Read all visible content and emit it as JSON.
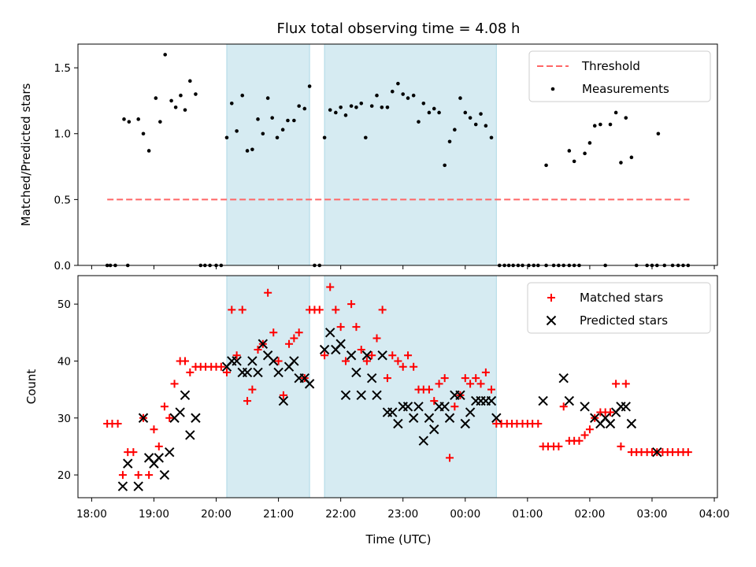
{
  "chart_data": {
    "type": "scatter",
    "title": "Flux total observing time = 4.08 h",
    "xlabel": "Time (UTC)",
    "x_unit": "hours since 18:00 UTC",
    "xlim": [
      -0.22,
      10.05
    ],
    "x_ticks": [
      0,
      1,
      2,
      3,
      4,
      5,
      6,
      7,
      8,
      9,
      10
    ],
    "x_tick_labels": [
      "18:00",
      "19:00",
      "20:00",
      "21:00",
      "22:00",
      "23:00",
      "00:00",
      "01:00",
      "02:00",
      "03:00",
      "04:00"
    ],
    "observing_windows": [
      [
        2.17,
        3.5
      ],
      [
        3.74,
        6.5
      ]
    ],
    "window_color": "#add8e6",
    "panels": [
      {
        "ylabel": "Matched/Predicted stars",
        "ylim": [
          0,
          1.68
        ],
        "y_ticks": [
          0,
          0.5,
          1.0,
          1.5
        ],
        "y_tick_labels": [
          "0.0",
          "0.5",
          "1.0",
          "1.5"
        ],
        "legend": [
          {
            "label": "Threshold",
            "style": "dashed-line",
            "color": "#ff6666"
          },
          {
            "label": "Measurements",
            "style": "dot",
            "color": "#000000"
          }
        ],
        "threshold": {
          "value": 0.5,
          "x_range": [
            0.25,
            9.6
          ]
        },
        "measurements": [
          [
            0.25,
            0
          ],
          [
            0.3,
            0
          ],
          [
            0.38,
            0
          ],
          [
            0.58,
            0
          ],
          [
            0.52,
            1.11
          ],
          [
            0.6,
            1.09
          ],
          [
            0.75,
            1.11
          ],
          [
            0.83,
            1.0
          ],
          [
            0.92,
            0.87
          ],
          [
            1.03,
            1.27
          ],
          [
            1.1,
            1.09
          ],
          [
            1.18,
            1.6
          ],
          [
            1.28,
            1.25
          ],
          [
            1.35,
            1.2
          ],
          [
            1.43,
            1.29
          ],
          [
            1.5,
            1.18
          ],
          [
            1.58,
            1.4
          ],
          [
            1.67,
            1.3
          ],
          [
            1.75,
            0
          ],
          [
            1.82,
            0
          ],
          [
            1.9,
            0
          ],
          [
            2.0,
            0
          ],
          [
            2.08,
            0
          ],
          [
            2.17,
            0.97
          ],
          [
            2.25,
            1.23
          ],
          [
            2.33,
            1.02
          ],
          [
            2.42,
            1.29
          ],
          [
            2.5,
            0.87
          ],
          [
            2.58,
            0.88
          ],
          [
            2.67,
            1.11
          ],
          [
            2.75,
            1.0
          ],
          [
            2.83,
            1.27
          ],
          [
            2.9,
            1.12
          ],
          [
            2.98,
            0.97
          ],
          [
            3.07,
            1.03
          ],
          [
            3.15,
            1.1
          ],
          [
            3.25,
            1.1
          ],
          [
            3.33,
            1.21
          ],
          [
            3.42,
            1.19
          ],
          [
            3.5,
            1.36
          ],
          [
            3.58,
            0
          ],
          [
            3.66,
            0
          ],
          [
            3.74,
            0.97
          ],
          [
            3.83,
            1.18
          ],
          [
            3.92,
            1.16
          ],
          [
            4.0,
            1.2
          ],
          [
            4.08,
            1.14
          ],
          [
            4.17,
            1.21
          ],
          [
            4.25,
            1.2
          ],
          [
            4.33,
            1.23
          ],
          [
            4.4,
            0.97
          ],
          [
            4.5,
            1.21
          ],
          [
            4.58,
            1.29
          ],
          [
            4.66,
            1.2
          ],
          [
            4.75,
            1.2
          ],
          [
            4.83,
            1.32
          ],
          [
            4.92,
            1.38
          ],
          [
            5.0,
            1.3
          ],
          [
            5.08,
            1.27
          ],
          [
            5.17,
            1.29
          ],
          [
            5.25,
            1.09
          ],
          [
            5.33,
            1.23
          ],
          [
            5.42,
            1.16
          ],
          [
            5.5,
            1.19
          ],
          [
            5.58,
            1.16
          ],
          [
            5.67,
            0.76
          ],
          [
            5.75,
            0.94
          ],
          [
            5.83,
            1.03
          ],
          [
            5.92,
            1.27
          ],
          [
            6.0,
            1.16
          ],
          [
            6.08,
            1.12
          ],
          [
            6.17,
            1.07
          ],
          [
            6.25,
            1.15
          ],
          [
            6.33,
            1.06
          ],
          [
            6.42,
            0.97
          ],
          [
            6.55,
            0
          ],
          [
            6.63,
            0
          ],
          [
            6.7,
            0
          ],
          [
            6.77,
            0
          ],
          [
            6.85,
            0
          ],
          [
            6.92,
            0
          ],
          [
            7.02,
            0
          ],
          [
            7.1,
            0
          ],
          [
            7.17,
            0
          ],
          [
            7.3,
            0
          ],
          [
            7.42,
            0
          ],
          [
            7.5,
            0
          ],
          [
            7.58,
            0
          ],
          [
            7.67,
            0
          ],
          [
            7.75,
            0
          ],
          [
            7.83,
            0
          ],
          [
            7.3,
            0.76
          ],
          [
            7.67,
            0.87
          ],
          [
            7.75,
            0.79
          ],
          [
            7.92,
            0.85
          ],
          [
            8.0,
            0.93
          ],
          [
            8.08,
            1.06
          ],
          [
            8.17,
            1.07
          ],
          [
            8.25,
            0
          ],
          [
            8.33,
            1.07
          ],
          [
            8.42,
            1.16
          ],
          [
            8.5,
            0.78
          ],
          [
            8.58,
            1.12
          ],
          [
            8.67,
            0.82
          ],
          [
            8.75,
            0
          ],
          [
            8.92,
            0
          ],
          [
            9.0,
            0
          ],
          [
            9.08,
            0
          ],
          [
            9.2,
            0
          ],
          [
            9.33,
            0
          ],
          [
            9.42,
            0
          ],
          [
            9.5,
            0
          ],
          [
            9.58,
            0
          ],
          [
            9.1,
            1.0
          ]
        ]
      },
      {
        "ylabel": "Count",
        "ylim": [
          16,
          55
        ],
        "y_ticks": [
          20,
          30,
          40,
          50
        ],
        "y_tick_labels": [
          "20",
          "30",
          "40",
          "50"
        ],
        "legend": [
          {
            "label": "Matched stars",
            "style": "plus",
            "color": "#ff0000"
          },
          {
            "label": "Predicted stars",
            "style": "x",
            "color": "#000000"
          }
        ],
        "matched": [
          [
            0.25,
            29
          ],
          [
            0.33,
            29
          ],
          [
            0.42,
            29
          ],
          [
            0.5,
            20
          ],
          [
            0.58,
            24
          ],
          [
            0.67,
            24
          ],
          [
            0.75,
            20
          ],
          [
            0.83,
            30
          ],
          [
            0.92,
            20
          ],
          [
            1.0,
            28
          ],
          [
            1.08,
            25
          ],
          [
            1.17,
            32
          ],
          [
            1.25,
            30
          ],
          [
            1.33,
            36
          ],
          [
            1.42,
            40
          ],
          [
            1.5,
            40
          ],
          [
            1.58,
            38
          ],
          [
            1.67,
            39
          ],
          [
            1.75,
            39
          ],
          [
            1.83,
            39
          ],
          [
            1.92,
            39
          ],
          [
            2.0,
            39
          ],
          [
            2.08,
            39
          ],
          [
            2.17,
            38
          ],
          [
            2.25,
            49
          ],
          [
            2.33,
            41
          ],
          [
            2.42,
            49
          ],
          [
            2.5,
            33
          ],
          [
            2.58,
            35
          ],
          [
            2.67,
            42
          ],
          [
            2.75,
            43
          ],
          [
            2.83,
            52
          ],
          [
            2.92,
            45
          ],
          [
            3.0,
            40
          ],
          [
            3.08,
            34
          ],
          [
            3.17,
            43
          ],
          [
            3.25,
            44
          ],
          [
            3.33,
            45
          ],
          [
            3.42,
            37
          ],
          [
            3.5,
            49
          ],
          [
            3.58,
            49
          ],
          [
            3.66,
            49
          ],
          [
            3.74,
            41
          ],
          [
            3.83,
            53
          ],
          [
            3.92,
            49
          ],
          [
            4.0,
            46
          ],
          [
            4.08,
            40
          ],
          [
            4.17,
            50
          ],
          [
            4.25,
            46
          ],
          [
            4.33,
            42
          ],
          [
            4.42,
            40
          ],
          [
            4.5,
            41
          ],
          [
            4.58,
            44
          ],
          [
            4.67,
            49
          ],
          [
            4.75,
            37
          ],
          [
            4.83,
            41
          ],
          [
            4.92,
            40
          ],
          [
            5.0,
            39
          ],
          [
            5.08,
            41
          ],
          [
            5.17,
            39
          ],
          [
            5.25,
            35
          ],
          [
            5.33,
            35
          ],
          [
            5.42,
            35
          ],
          [
            5.5,
            33
          ],
          [
            5.58,
            36
          ],
          [
            5.67,
            37
          ],
          [
            5.75,
            23
          ],
          [
            5.83,
            32
          ],
          [
            5.92,
            34
          ],
          [
            6.0,
            37
          ],
          [
            6.08,
            36
          ],
          [
            6.17,
            37
          ],
          [
            6.25,
            36
          ],
          [
            6.33,
            38
          ],
          [
            6.42,
            35
          ],
          [
            6.5,
            29
          ],
          [
            6.58,
            29
          ],
          [
            6.67,
            29
          ],
          [
            6.75,
            29
          ],
          [
            6.83,
            29
          ],
          [
            6.92,
            29
          ],
          [
            7.0,
            29
          ],
          [
            7.08,
            29
          ],
          [
            7.17,
            29
          ],
          [
            7.25,
            25
          ],
          [
            7.33,
            25
          ],
          [
            7.42,
            25
          ],
          [
            7.5,
            25
          ],
          [
            7.58,
            32
          ],
          [
            7.67,
            26
          ],
          [
            7.75,
            26
          ],
          [
            7.83,
            26
          ],
          [
            7.92,
            27
          ],
          [
            8.0,
            28
          ],
          [
            8.08,
            30
          ],
          [
            8.17,
            31
          ],
          [
            8.25,
            31
          ],
          [
            8.33,
            31
          ],
          [
            8.42,
            36
          ],
          [
            8.5,
            25
          ],
          [
            8.58,
            36
          ],
          [
            8.67,
            24
          ],
          [
            8.75,
            24
          ],
          [
            8.83,
            24
          ],
          [
            8.92,
            24
          ],
          [
            9.0,
            24
          ],
          [
            9.08,
            24
          ],
          [
            9.17,
            24
          ],
          [
            9.25,
            24
          ],
          [
            9.33,
            24
          ],
          [
            9.42,
            24
          ],
          [
            9.5,
            24
          ],
          [
            9.58,
            24
          ]
        ],
        "predicted": [
          [
            0.5,
            18
          ],
          [
            0.58,
            22
          ],
          [
            0.75,
            18
          ],
          [
            0.83,
            30
          ],
          [
            0.92,
            23
          ],
          [
            1.0,
            22
          ],
          [
            1.08,
            23
          ],
          [
            1.17,
            20
          ],
          [
            1.25,
            24
          ],
          [
            1.33,
            30
          ],
          [
            1.42,
            31
          ],
          [
            1.5,
            34
          ],
          [
            1.58,
            27
          ],
          [
            1.67,
            30
          ],
          [
            2.17,
            39
          ],
          [
            2.25,
            40
          ],
          [
            2.33,
            40
          ],
          [
            2.42,
            38
          ],
          [
            2.5,
            38
          ],
          [
            2.58,
            40
          ],
          [
            2.67,
            38
          ],
          [
            2.75,
            43
          ],
          [
            2.83,
            41
          ],
          [
            2.92,
            40
          ],
          [
            3.0,
            38
          ],
          [
            3.08,
            33
          ],
          [
            3.17,
            39
          ],
          [
            3.25,
            40
          ],
          [
            3.33,
            37
          ],
          [
            3.42,
            37
          ],
          [
            3.5,
            36
          ],
          [
            3.74,
            42
          ],
          [
            3.83,
            45
          ],
          [
            3.92,
            42
          ],
          [
            4.0,
            43
          ],
          [
            4.08,
            34
          ],
          [
            4.17,
            41
          ],
          [
            4.25,
            38
          ],
          [
            4.33,
            34
          ],
          [
            4.42,
            41
          ],
          [
            4.5,
            37
          ],
          [
            4.58,
            34
          ],
          [
            4.67,
            41
          ],
          [
            4.75,
            31
          ],
          [
            4.83,
            31
          ],
          [
            4.92,
            29
          ],
          [
            5.0,
            32
          ],
          [
            5.08,
            32
          ],
          [
            5.17,
            30
          ],
          [
            5.25,
            32
          ],
          [
            5.33,
            26
          ],
          [
            5.42,
            30
          ],
          [
            5.5,
            28
          ],
          [
            5.58,
            32
          ],
          [
            5.67,
            32
          ],
          [
            5.75,
            30
          ],
          [
            5.83,
            34
          ],
          [
            5.92,
            34
          ],
          [
            6.0,
            29
          ],
          [
            6.08,
            31
          ],
          [
            6.17,
            33
          ],
          [
            6.25,
            33
          ],
          [
            6.33,
            33
          ],
          [
            6.42,
            33
          ],
          [
            6.5,
            30
          ],
          [
            7.25,
            33
          ],
          [
            7.58,
            37
          ],
          [
            7.67,
            33
          ],
          [
            7.92,
            32
          ],
          [
            8.08,
            30
          ],
          [
            8.17,
            29
          ],
          [
            8.25,
            30
          ],
          [
            8.33,
            29
          ],
          [
            8.42,
            31
          ],
          [
            8.5,
            32
          ],
          [
            8.58,
            32
          ],
          [
            8.67,
            29
          ],
          [
            9.08,
            24
          ]
        ]
      }
    ]
  }
}
